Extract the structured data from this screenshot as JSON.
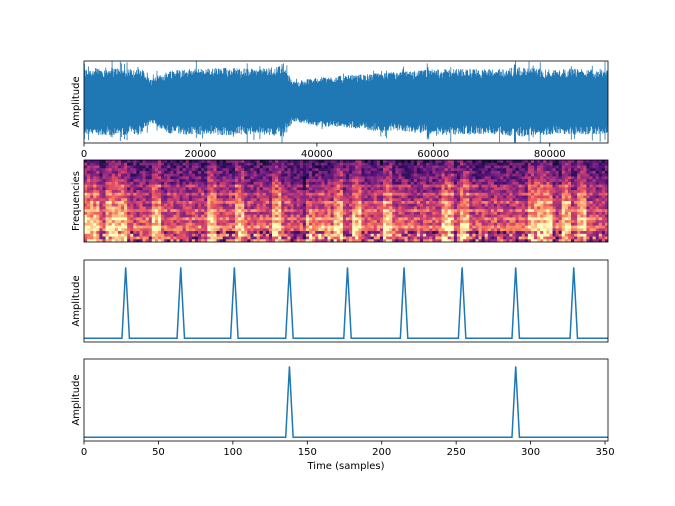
{
  "chart_data": [
    {
      "type": "line",
      "panel": "waveform",
      "ylabel": "Amplitude",
      "xlabel": "",
      "xlim": [
        0,
        90000
      ],
      "ylim": [
        -1,
        1
      ],
      "xticks": [
        "0",
        "20000",
        "40000",
        "60000",
        "80000"
      ],
      "xtick_values": [
        0,
        20000,
        40000,
        60000,
        80000
      ],
      "show_yticks": false,
      "color": "#1f77b4",
      "envelope_x": [
        0,
        5000,
        10000,
        11500,
        15000,
        20000,
        25000,
        30000,
        34000,
        36000,
        40000,
        45000,
        50000,
        55000,
        60000,
        65000,
        70000,
        75000,
        80000,
        85000,
        90000
      ],
      "envelope_top": [
        0.82,
        0.85,
        0.8,
        0.55,
        0.8,
        0.82,
        0.85,
        0.8,
        0.9,
        0.5,
        0.6,
        0.65,
        0.7,
        0.75,
        0.8,
        0.82,
        0.8,
        0.85,
        0.8,
        0.82,
        0.8
      ],
      "envelope_bottom": [
        -0.8,
        -0.82,
        -0.78,
        -0.5,
        -0.8,
        -0.8,
        -0.82,
        -0.78,
        -0.85,
        -0.48,
        -0.6,
        -0.62,
        -0.7,
        -0.72,
        -0.8,
        -0.8,
        -0.78,
        -0.85,
        -0.8,
        -0.8,
        -0.78
      ]
    },
    {
      "type": "heatmap",
      "panel": "spectrogram",
      "ylabel": "Frequencies",
      "xlabel": "",
      "colormap": "magma",
      "show_xticks": false,
      "show_yticks": false
    },
    {
      "type": "line",
      "panel": "beat-onsets",
      "ylabel": "Amplitude",
      "xlabel": "",
      "xlim": [
        0,
        352
      ],
      "ylim": [
        0,
        1.1
      ],
      "show_xticks": false,
      "show_yticks": false,
      "color": "#1f77b4",
      "baseline": 0.05,
      "peaks": [
        28,
        65,
        101,
        138,
        177,
        215,
        254,
        290,
        329
      ]
    },
    {
      "type": "line",
      "panel": "downbeat-onsets",
      "ylabel": "Amplitude",
      "xlabel": "Time (samples)",
      "xlim": [
        0,
        352
      ],
      "ylim": [
        0,
        1.1
      ],
      "xticks": [
        "0",
        "50",
        "100",
        "150",
        "200",
        "250",
        "300",
        "350"
      ],
      "xtick_values": [
        0,
        50,
        100,
        150,
        200,
        250,
        300,
        350
      ],
      "show_yticks": false,
      "color": "#1f77b4",
      "baseline": 0.05,
      "peaks": [
        138,
        290
      ]
    }
  ]
}
